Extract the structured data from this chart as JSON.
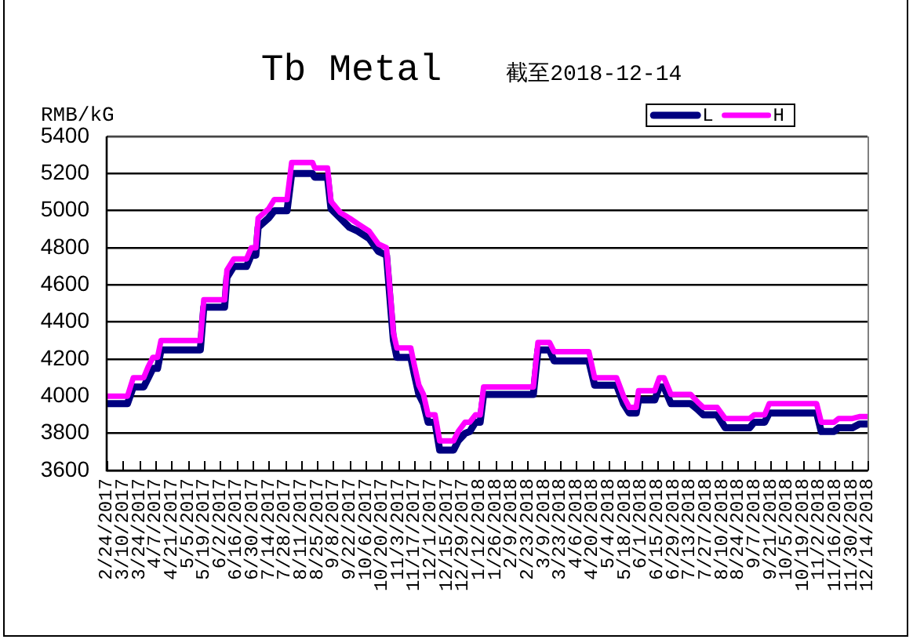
{
  "chart_data": {
    "type": "line",
    "title": "Tb Metal",
    "subtitle": "截至2018-12-14",
    "ylabel": "RMB/kG",
    "x": [
      "2017-02-24",
      "2017-03-14",
      "2017-03-19",
      "2017-03-28",
      "2017-04-01",
      "2017-04-05",
      "2017-04-09",
      "2017-04-12",
      "2017-05-16",
      "2017-05-19",
      "2017-06-06",
      "2017-06-08",
      "2017-06-14",
      "2017-06-25",
      "2017-06-29",
      "2017-07-03",
      "2017-07-05",
      "2017-07-14",
      "2017-07-19",
      "2017-07-30",
      "2017-08-03",
      "2017-08-21",
      "2017-08-23",
      "2017-09-03",
      "2017-09-06",
      "2017-09-14",
      "2017-09-22",
      "2017-09-29",
      "2017-10-09",
      "2017-10-17",
      "2017-10-24",
      "2017-10-28",
      "2017-10-30",
      "2017-11-02",
      "2017-11-14",
      "2017-11-17",
      "2017-11-21",
      "2017-11-25",
      "2017-11-29",
      "2017-12-05",
      "2017-12-09",
      "2017-12-21",
      "2017-12-25",
      "2017-12-31",
      "2018-01-04",
      "2018-01-09",
      "2018-01-13",
      "2018-01-16",
      "2018-02-28",
      "2018-03-04",
      "2018-03-14",
      "2018-03-18",
      "2018-04-17",
      "2018-04-22",
      "2018-05-11",
      "2018-05-17",
      "2018-05-22",
      "2018-05-28",
      "2018-05-30",
      "2018-06-13",
      "2018-06-17",
      "2018-06-21",
      "2018-06-27",
      "2018-07-14",
      "2018-07-20",
      "2018-07-25",
      "2018-08-06",
      "2018-08-13",
      "2018-09-03",
      "2018-09-07",
      "2018-09-16",
      "2018-09-20",
      "2018-10-31",
      "2018-11-04",
      "2018-11-15",
      "2018-11-19",
      "2018-12-01",
      "2018-12-07",
      "2018-12-14"
    ],
    "series": [
      {
        "name": "L",
        "color": "#000080",
        "values": [
          3960,
          3960,
          4050,
          4050,
          4100,
          4150,
          4150,
          4250,
          4250,
          4480,
          4480,
          4640,
          4700,
          4700,
          4760,
          4760,
          4910,
          4960,
          5000,
          5000,
          5200,
          5200,
          5180,
          5180,
          5010,
          4960,
          4910,
          4890,
          4850,
          4780,
          4760,
          4450,
          4300,
          4210,
          4210,
          4120,
          4010,
          3960,
          3860,
          3860,
          3710,
          3710,
          3760,
          3800,
          3810,
          3860,
          3860,
          4010,
          4010,
          4250,
          4250,
          4190,
          4190,
          4060,
          4060,
          3960,
          3910,
          3910,
          3980,
          3980,
          4050,
          4050,
          3960,
          3960,
          3930,
          3900,
          3900,
          3830,
          3830,
          3860,
          3860,
          3910,
          3910,
          3810,
          3810,
          3830,
          3830,
          3850,
          3850
        ]
      },
      {
        "name": "H",
        "color": "#ff00ff",
        "values": [
          4000,
          4000,
          4100,
          4100,
          4160,
          4210,
          4210,
          4300,
          4300,
          4520,
          4520,
          4680,
          4740,
          4740,
          4800,
          4800,
          4960,
          5010,
          5060,
          5060,
          5260,
          5260,
          5230,
          5230,
          5050,
          4990,
          4960,
          4930,
          4890,
          4820,
          4800,
          4500,
          4340,
          4260,
          4260,
          4170,
          4060,
          4010,
          3900,
          3900,
          3760,
          3760,
          3810,
          3860,
          3860,
          3900,
          3900,
          4050,
          4050,
          4290,
          4290,
          4240,
          4240,
          4100,
          4100,
          4000,
          3940,
          3940,
          4030,
          4030,
          4100,
          4100,
          4010,
          4010,
          3970,
          3940,
          3940,
          3880,
          3880,
          3900,
          3900,
          3960,
          3960,
          3860,
          3860,
          3880,
          3880,
          3890,
          3890
        ]
      }
    ],
    "xlim": [
      "2017-02-24",
      "2018-12-14"
    ],
    "xticks": [
      {
        "value": "2017-02-24",
        "label": "2/24/2017"
      },
      {
        "value": "2017-03-10",
        "label": "3/10/2017"
      },
      {
        "value": "2017-03-24",
        "label": "3/24/2017"
      },
      {
        "value": "2017-04-07",
        "label": "4/7/2017"
      },
      {
        "value": "2017-04-21",
        "label": "4/21/2017"
      },
      {
        "value": "2017-05-05",
        "label": "5/5/2017"
      },
      {
        "value": "2017-05-19",
        "label": "5/19/2017"
      },
      {
        "value": "2017-06-02",
        "label": "6/2/2017"
      },
      {
        "value": "2017-06-16",
        "label": "6/16/2017"
      },
      {
        "value": "2017-06-30",
        "label": "6/30/2017"
      },
      {
        "value": "2017-07-14",
        "label": "7/14/2017"
      },
      {
        "value": "2017-07-28",
        "label": "7/28/2017"
      },
      {
        "value": "2017-08-11",
        "label": "8/11/2017"
      },
      {
        "value": "2017-08-25",
        "label": "8/25/2017"
      },
      {
        "value": "2017-09-08",
        "label": "9/8/2017"
      },
      {
        "value": "2017-09-22",
        "label": "9/22/2017"
      },
      {
        "value": "2017-10-06",
        "label": "10/6/2017"
      },
      {
        "value": "2017-10-20",
        "label": "10/20/2017"
      },
      {
        "value": "2017-11-03",
        "label": "11/3/2017"
      },
      {
        "value": "2017-11-17",
        "label": "11/17/2017"
      },
      {
        "value": "2017-12-01",
        "label": "12/1/2017"
      },
      {
        "value": "2017-12-15",
        "label": "12/15/2017"
      },
      {
        "value": "2017-12-29",
        "label": "12/29/2017"
      },
      {
        "value": "2018-01-12",
        "label": "1/12/2018"
      },
      {
        "value": "2018-01-26",
        "label": "1/26/2018"
      },
      {
        "value": "2018-02-09",
        "label": "2/9/2018"
      },
      {
        "value": "2018-02-23",
        "label": "2/23/2018"
      },
      {
        "value": "2018-03-09",
        "label": "3/9/2018"
      },
      {
        "value": "2018-03-23",
        "label": "3/23/2018"
      },
      {
        "value": "2018-04-06",
        "label": "4/6/2018"
      },
      {
        "value": "2018-04-20",
        "label": "4/20/2018"
      },
      {
        "value": "2018-05-04",
        "label": "5/4/2018"
      },
      {
        "value": "2018-05-18",
        "label": "5/18/2018"
      },
      {
        "value": "2018-06-01",
        "label": "6/1/2018"
      },
      {
        "value": "2018-06-15",
        "label": "6/15/2018"
      },
      {
        "value": "2018-06-29",
        "label": "6/29/2018"
      },
      {
        "value": "2018-07-13",
        "label": "7/13/2018"
      },
      {
        "value": "2018-07-27",
        "label": "7/27/2018"
      },
      {
        "value": "2018-08-10",
        "label": "8/10/2018"
      },
      {
        "value": "2018-08-24",
        "label": "8/24/2018"
      },
      {
        "value": "2018-09-07",
        "label": "9/7/2018"
      },
      {
        "value": "2018-09-21",
        "label": "9/21/2018"
      },
      {
        "value": "2018-10-05",
        "label": "10/5/2018"
      },
      {
        "value": "2018-10-19",
        "label": "10/19/2018"
      },
      {
        "value": "2018-11-02",
        "label": "11/2/2018"
      },
      {
        "value": "2018-11-16",
        "label": "11/16/2018"
      },
      {
        "value": "2018-11-30",
        "label": "11/30/2018"
      },
      {
        "value": "2018-12-14",
        "label": "12/14/2018"
      }
    ],
    "ylim": [
      3600,
      5400
    ],
    "yticks": [
      3600,
      3800,
      4000,
      4200,
      4400,
      4600,
      4800,
      5000,
      5200,
      5400
    ],
    "grid": "y",
    "legend": "top right"
  }
}
